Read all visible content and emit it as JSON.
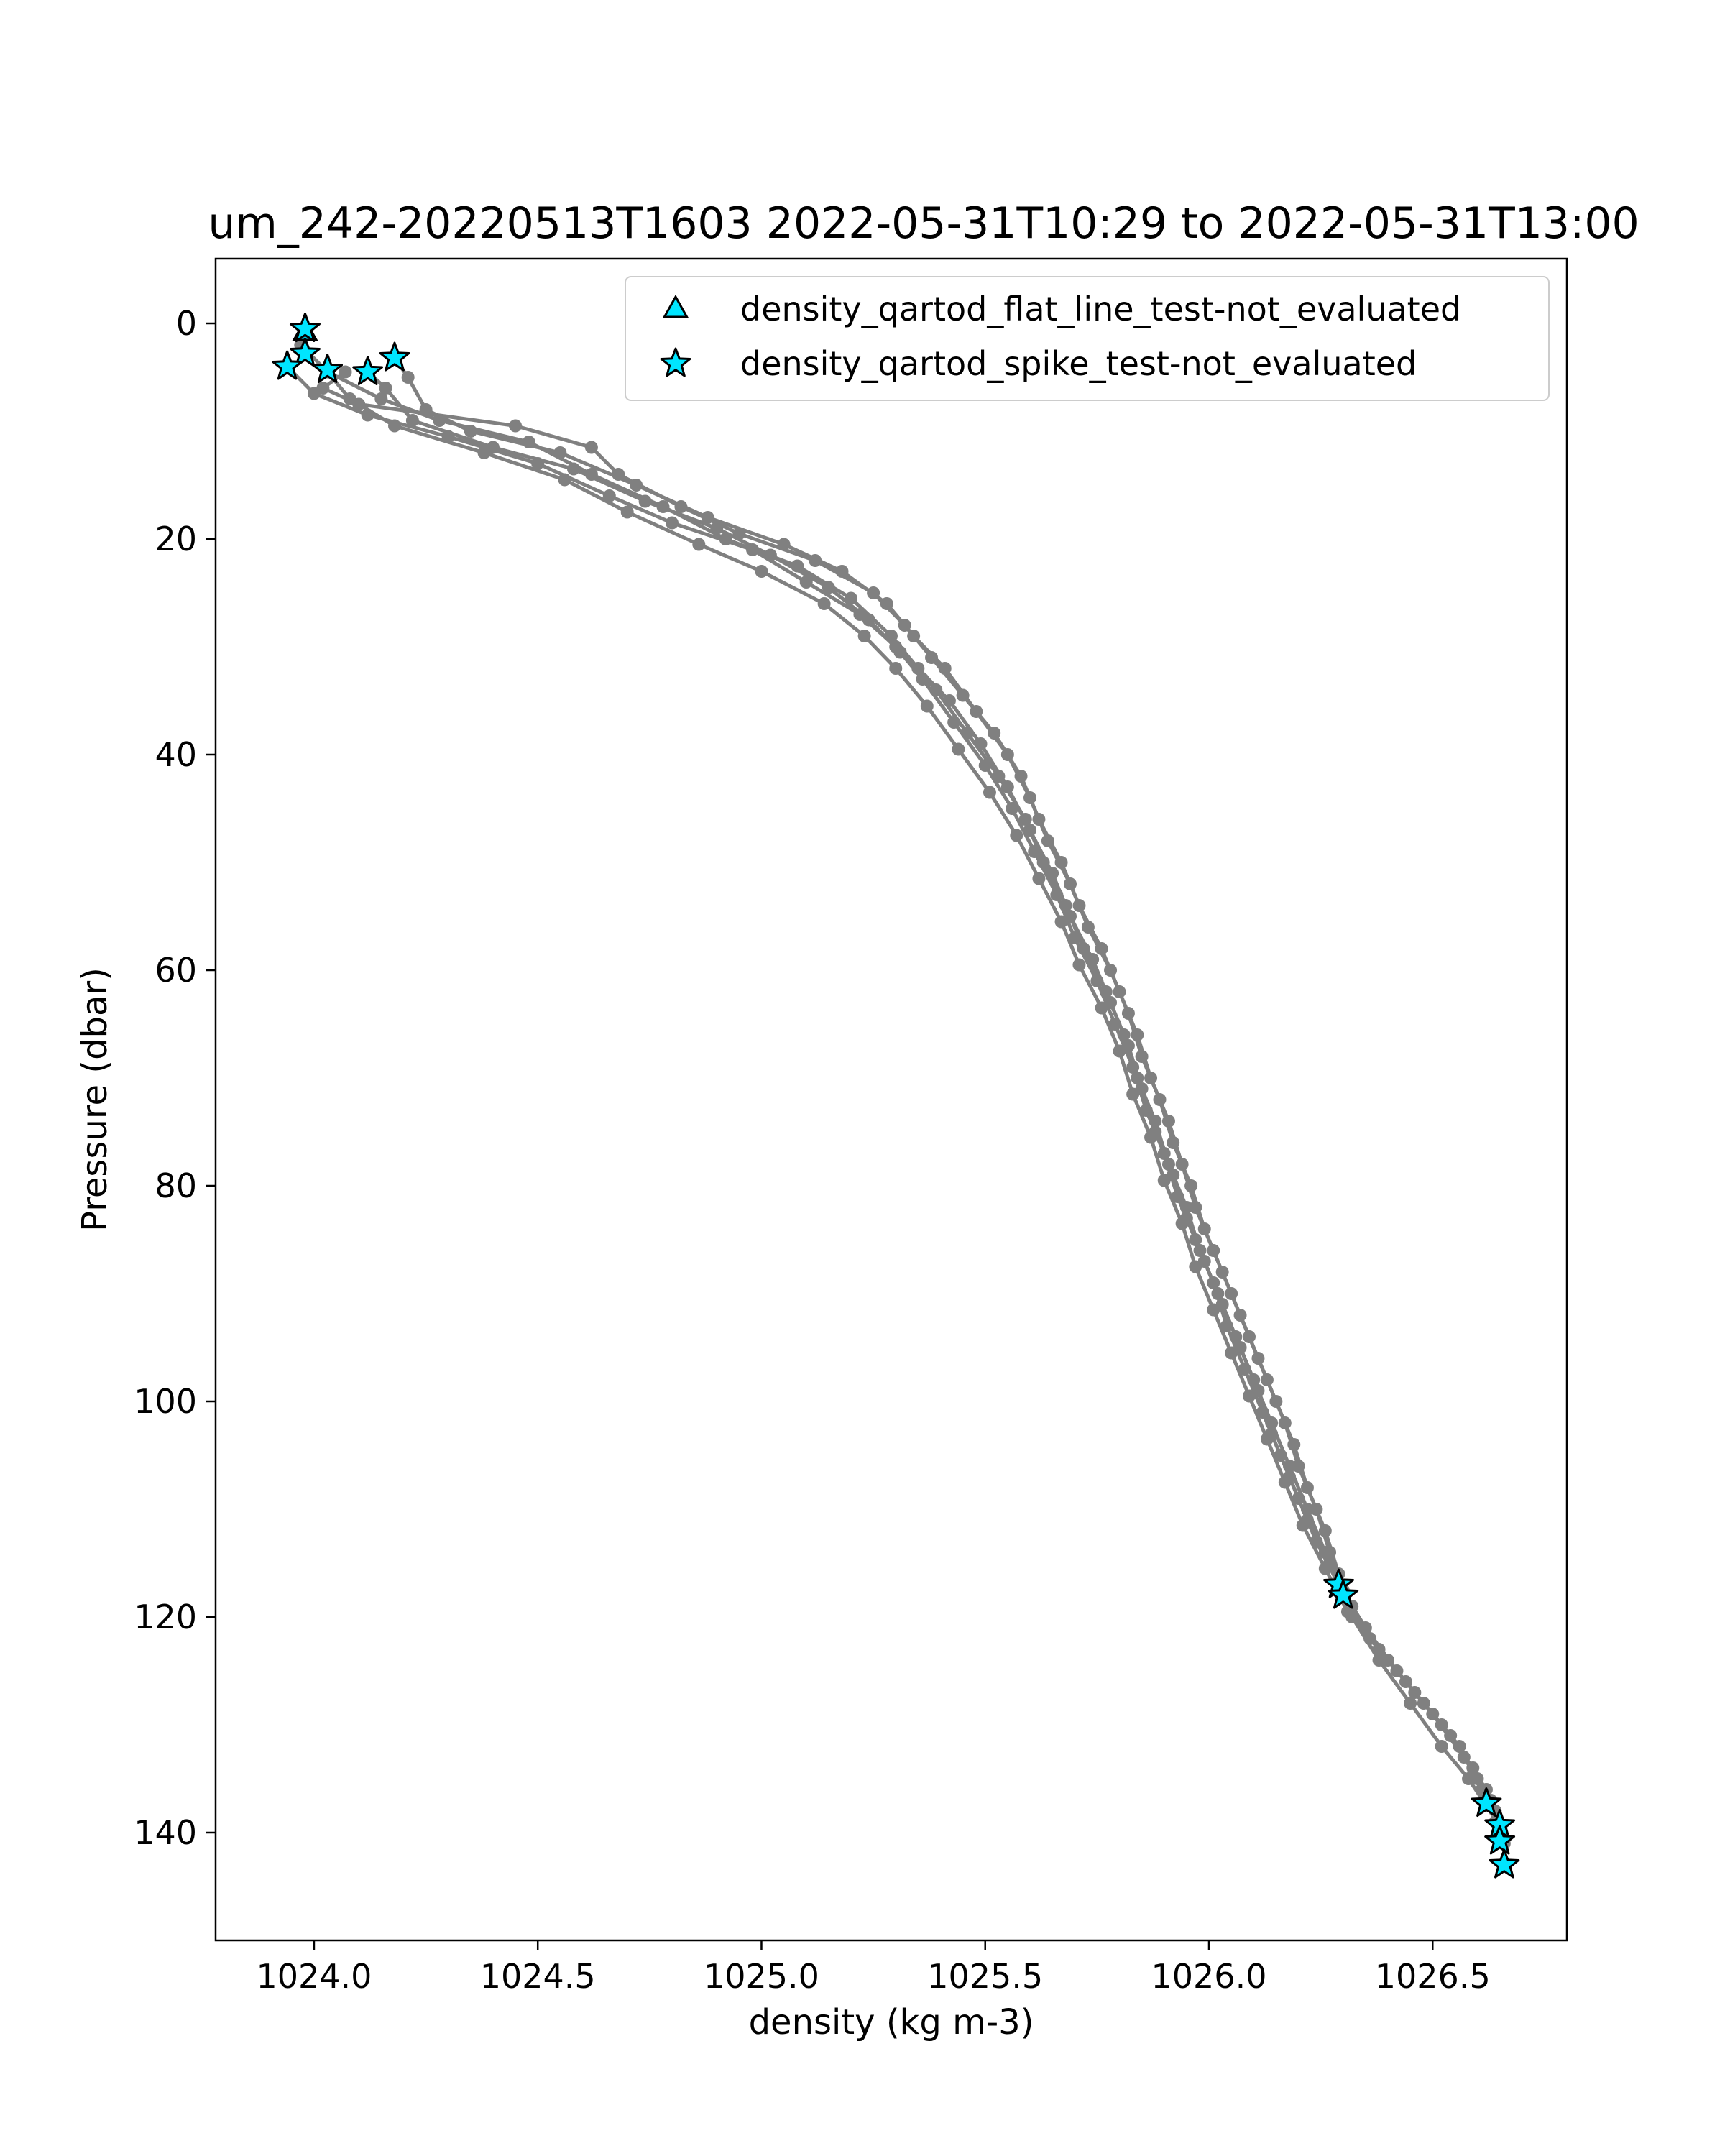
{
  "chart_data": {
    "type": "scatter",
    "title": "um_242-20220513T1603 2022-05-31T10:29 to 2022-05-31T13:00",
    "xlabel": "density (kg m-3)",
    "ylabel": "Pressure (dbar)",
    "xlim": [
      1023.78,
      1026.8
    ],
    "ylim": [
      150,
      -6
    ],
    "y_inverted": true,
    "grid": false,
    "legend_position": "top-right",
    "x_ticks": [
      "1024.0",
      "1024.5",
      "1025.0",
      "1025.5",
      "1026.0",
      "1026.5"
    ],
    "x_tick_values": [
      1024.0,
      1024.5,
      1025.0,
      1025.5,
      1026.0,
      1026.5
    ],
    "y_ticks": [
      "0",
      "20",
      "40",
      "60",
      "80",
      "100",
      "120",
      "140"
    ],
    "y_tick_values": [
      0,
      20,
      40,
      60,
      80,
      100,
      120,
      140
    ],
    "profile_color": "#808080",
    "marker_fill": "#00e5ff",
    "marker_edge": "#000000",
    "legend": [
      {
        "label": "density_qartod_flat_line_test-not_evaluated",
        "marker": "triangle"
      },
      {
        "label": "density_qartod_spike_test-not_evaluated",
        "marker": "star"
      }
    ],
    "series": [
      {
        "type": "line",
        "points": [
          [
            1024.07,
            4.5
          ],
          [
            1024.02,
            6
          ],
          [
            1024.1,
            7.5
          ],
          [
            1024.45,
            9.5
          ],
          [
            1024.62,
            11.5
          ],
          [
            1024.68,
            14
          ],
          [
            1024.82,
            17
          ],
          [
            1024.95,
            19.5
          ],
          [
            1025.12,
            22
          ],
          [
            1025.25,
            25
          ],
          [
            1025.32,
            28
          ],
          [
            1025.38,
            31
          ],
          [
            1025.45,
            34.5
          ],
          [
            1025.52,
            38
          ],
          [
            1025.58,
            42
          ],
          [
            1025.62,
            46
          ],
          [
            1025.67,
            50
          ],
          [
            1025.71,
            54
          ],
          [
            1025.76,
            58
          ],
          [
            1025.8,
            62
          ],
          [
            1025.84,
            66
          ],
          [
            1025.87,
            70
          ],
          [
            1025.91,
            74
          ],
          [
            1025.94,
            78
          ],
          [
            1025.97,
            82
          ],
          [
            1026.01,
            86
          ],
          [
            1026.05,
            90
          ],
          [
            1026.09,
            94
          ],
          [
            1026.13,
            98
          ],
          [
            1026.17,
            102
          ],
          [
            1026.2,
            106
          ],
          [
            1026.24,
            110
          ],
          [
            1026.27,
            114
          ],
          [
            1026.3,
            117.5
          ]
        ]
      },
      {
        "type": "line",
        "points": [
          [
            1024.18,
            3.2
          ],
          [
            1024.21,
            5
          ],
          [
            1024.25,
            8
          ],
          [
            1024.35,
            10
          ],
          [
            1024.55,
            12
          ],
          [
            1024.72,
            15
          ],
          [
            1024.88,
            18
          ],
          [
            1025.05,
            20.5
          ],
          [
            1025.18,
            23
          ],
          [
            1025.28,
            26
          ],
          [
            1025.34,
            29
          ],
          [
            1025.41,
            32
          ],
          [
            1025.48,
            36
          ],
          [
            1025.55,
            40
          ],
          [
            1025.6,
            44
          ],
          [
            1025.64,
            48
          ],
          [
            1025.69,
            52
          ],
          [
            1025.73,
            56
          ],
          [
            1025.78,
            60
          ],
          [
            1025.82,
            64
          ],
          [
            1025.85,
            68
          ],
          [
            1025.89,
            72
          ],
          [
            1025.92,
            76
          ],
          [
            1025.96,
            80
          ],
          [
            1025.99,
            84
          ],
          [
            1026.03,
            88
          ],
          [
            1026.07,
            92
          ],
          [
            1026.11,
            96
          ],
          [
            1026.15,
            100
          ],
          [
            1026.19,
            104
          ],
          [
            1026.22,
            108
          ],
          [
            1026.26,
            112
          ],
          [
            1026.29,
            116
          ],
          [
            1026.32,
            120
          ],
          [
            1026.38,
            124
          ],
          [
            1026.45,
            128
          ],
          [
            1026.52,
            132
          ],
          [
            1026.58,
            135
          ],
          [
            1026.62,
            137.5
          ]
        ]
      },
      {
        "type": "line",
        "points": [
          [
            1023.94,
            4
          ],
          [
            1024.0,
            6.5
          ],
          [
            1024.12,
            8.5
          ],
          [
            1024.3,
            10.5
          ],
          [
            1024.5,
            13
          ],
          [
            1024.66,
            16
          ],
          [
            1024.8,
            18.5
          ],
          [
            1024.98,
            21
          ],
          [
            1025.1,
            24
          ],
          [
            1025.22,
            27
          ],
          [
            1025.3,
            30
          ],
          [
            1025.36,
            33
          ],
          [
            1025.43,
            37
          ],
          [
            1025.5,
            41
          ],
          [
            1025.56,
            45
          ],
          [
            1025.61,
            49
          ],
          [
            1025.66,
            53
          ],
          [
            1025.7,
            57
          ],
          [
            1025.75,
            61
          ],
          [
            1025.79,
            65
          ],
          [
            1025.83,
            69
          ],
          [
            1025.86,
            73
          ],
          [
            1025.9,
            77
          ],
          [
            1025.93,
            81
          ],
          [
            1025.97,
            85
          ],
          [
            1026.01,
            89
          ],
          [
            1026.04,
            93
          ],
          [
            1026.08,
            97
          ],
          [
            1026.12,
            101
          ],
          [
            1026.16,
            105
          ],
          [
            1026.2,
            109
          ],
          [
            1026.24,
            113
          ],
          [
            1026.29,
            117
          ],
          [
            1026.35,
            121
          ],
          [
            1026.42,
            125
          ],
          [
            1026.5,
            129
          ],
          [
            1026.57,
            133
          ],
          [
            1026.62,
            136
          ],
          [
            1026.65,
            139.5
          ]
        ]
      },
      {
        "type": "line",
        "points": [
          [
            1023.98,
            0.5
          ],
          [
            1023.97,
            2
          ],
          [
            1024.03,
            4.5
          ],
          [
            1024.15,
            7
          ],
          [
            1024.28,
            9
          ],
          [
            1024.48,
            11
          ],
          [
            1024.62,
            14
          ],
          [
            1024.78,
            17
          ],
          [
            1024.92,
            20
          ],
          [
            1025.08,
            22.5
          ],
          [
            1025.2,
            25.5
          ],
          [
            1025.29,
            29
          ],
          [
            1025.35,
            32
          ],
          [
            1025.42,
            35
          ],
          [
            1025.49,
            39
          ],
          [
            1025.55,
            43
          ],
          [
            1025.6,
            47
          ],
          [
            1025.65,
            51
          ],
          [
            1025.69,
            55
          ],
          [
            1025.74,
            59
          ],
          [
            1025.78,
            63
          ],
          [
            1025.82,
            67
          ],
          [
            1025.85,
            71
          ],
          [
            1025.88,
            75
          ],
          [
            1025.92,
            79
          ],
          [
            1025.95,
            83
          ],
          [
            1025.99,
            87
          ],
          [
            1026.03,
            91
          ],
          [
            1026.07,
            95
          ],
          [
            1026.11,
            99
          ],
          [
            1026.14,
            103
          ],
          [
            1026.18,
            107
          ],
          [
            1026.22,
            111
          ],
          [
            1026.27,
            115
          ],
          [
            1026.32,
            119
          ],
          [
            1026.38,
            123
          ],
          [
            1026.46,
            127
          ],
          [
            1026.54,
            131
          ],
          [
            1026.6,
            135
          ],
          [
            1026.64,
            138
          ],
          [
            1026.65,
            140.5
          ]
        ]
      },
      {
        "type": "line",
        "points": [
          [
            1024.12,
            4.5
          ],
          [
            1024.16,
            6
          ],
          [
            1024.22,
            9
          ],
          [
            1024.4,
            11.5
          ],
          [
            1024.58,
            13.5
          ],
          [
            1024.74,
            16.5
          ],
          [
            1024.9,
            19
          ],
          [
            1025.02,
            21.5
          ],
          [
            1025.15,
            24.5
          ],
          [
            1025.24,
            27.5
          ],
          [
            1025.31,
            30.5
          ],
          [
            1025.39,
            34
          ],
          [
            1025.46,
            38
          ],
          [
            1025.53,
            42
          ],
          [
            1025.59,
            46
          ],
          [
            1025.63,
            50
          ],
          [
            1025.68,
            54
          ],
          [
            1025.72,
            58
          ],
          [
            1025.77,
            62
          ],
          [
            1025.81,
            66
          ],
          [
            1025.84,
            70
          ],
          [
            1025.88,
            74
          ],
          [
            1025.91,
            78
          ],
          [
            1025.95,
            82
          ],
          [
            1025.98,
            86
          ],
          [
            1026.02,
            90
          ],
          [
            1026.06,
            94
          ],
          [
            1026.1,
            98
          ],
          [
            1026.14,
            102
          ],
          [
            1026.18,
            106
          ],
          [
            1026.22,
            110
          ],
          [
            1026.26,
            114
          ],
          [
            1026.3,
            118
          ],
          [
            1026.36,
            122
          ],
          [
            1026.44,
            126
          ],
          [
            1026.52,
            130
          ],
          [
            1026.59,
            134
          ],
          [
            1026.63,
            137
          ],
          [
            1026.66,
            141
          ],
          [
            1026.66,
            143
          ]
        ]
      },
      {
        "type": "line",
        "points": [
          [
            1024.03,
            4.5
          ],
          [
            1024.08,
            7
          ],
          [
            1024.18,
            9.5
          ],
          [
            1024.38,
            12
          ],
          [
            1024.56,
            14.5
          ],
          [
            1024.7,
            17.5
          ],
          [
            1024.86,
            20.5
          ],
          [
            1025.0,
            23
          ],
          [
            1025.14,
            26
          ],
          [
            1025.23,
            29
          ],
          [
            1025.3,
            32
          ],
          [
            1025.37,
            35.5
          ],
          [
            1025.44,
            39.5
          ],
          [
            1025.51,
            43.5
          ],
          [
            1025.57,
            47.5
          ],
          [
            1025.62,
            51.5
          ],
          [
            1025.67,
            55.5
          ],
          [
            1025.71,
            59.5
          ],
          [
            1025.76,
            63.5
          ],
          [
            1025.8,
            67.5
          ],
          [
            1025.83,
            71.5
          ],
          [
            1025.87,
            75.5
          ],
          [
            1025.9,
            79.5
          ],
          [
            1025.94,
            83.5
          ],
          [
            1025.97,
            87.5
          ],
          [
            1026.01,
            91.5
          ],
          [
            1026.05,
            95.5
          ],
          [
            1026.09,
            99.5
          ],
          [
            1026.13,
            103.5
          ],
          [
            1026.17,
            107.5
          ],
          [
            1026.21,
            111.5
          ],
          [
            1026.26,
            115.5
          ],
          [
            1026.31,
            119.5
          ],
          [
            1026.4,
            124
          ],
          [
            1026.48,
            128
          ],
          [
            1026.56,
            132
          ],
          [
            1026.61,
            136
          ],
          [
            1026.64,
            139
          ]
        ]
      }
    ],
    "flat_line_test_points": [
      {
        "x": 1023.98,
        "y": 0.8
      }
    ],
    "spike_test_points": [
      {
        "x": 1023.98,
        "y": 0.5
      },
      {
        "x": 1023.98,
        "y": 2.8
      },
      {
        "x": 1023.94,
        "y": 4.0
      },
      {
        "x": 1024.03,
        "y": 4.3
      },
      {
        "x": 1024.12,
        "y": 4.5
      },
      {
        "x": 1024.18,
        "y": 3.2
      },
      {
        "x": 1026.29,
        "y": 117.0
      },
      {
        "x": 1026.3,
        "y": 118.0
      },
      {
        "x": 1026.62,
        "y": 137.3
      },
      {
        "x": 1026.65,
        "y": 139.3
      },
      {
        "x": 1026.65,
        "y": 140.8
      },
      {
        "x": 1026.66,
        "y": 143.0
      }
    ]
  }
}
